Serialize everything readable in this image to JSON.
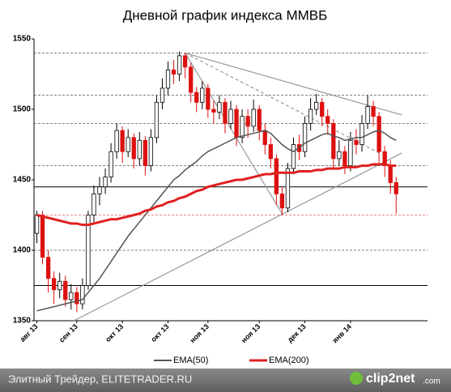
{
  "chart_data": {
    "type": "candlestick",
    "title": "Дневной график индекса ММВБ",
    "ylim": [
      1350,
      1550
    ],
    "yticks": [
      1350,
      1400,
      1450,
      1500,
      1550
    ],
    "xlim": [
      -0.5,
      68.5
    ],
    "xticks": [
      {
        "value": 0,
        "label": "авг 13"
      },
      {
        "value": 7,
        "label": "сен 13"
      },
      {
        "value": 15,
        "label": "окт 13"
      },
      {
        "value": 23,
        "label": "окт 13"
      },
      {
        "value": 30,
        "label": "ноя 13"
      },
      {
        "value": 39,
        "label": "ноя 13"
      },
      {
        "value": 47,
        "label": "дек 13"
      },
      {
        "value": 55,
        "label": "янв 14"
      }
    ],
    "grid": false,
    "up_color": "#ffffff",
    "down_color": "#dd1111",
    "open": [
      1412,
      1425,
      1395,
      1380,
      1372,
      1378,
      1365,
      1370,
      1362,
      1375,
      1425,
      1440,
      1445,
      1452,
      1470,
      1485,
      1470,
      1480,
      1465,
      1478,
      1460,
      1480,
      1505,
      1515,
      1528,
      1525,
      1538,
      1530,
      1512,
      1505,
      1515,
      1500,
      1498,
      1505,
      1490,
      1500,
      1480,
      1495,
      1488,
      1500,
      1485,
      1475,
      1465,
      1440,
      1430,
      1458,
      1475,
      1470,
      1490,
      1500,
      1505,
      1495,
      1490,
      1465,
      1470,
      1460,
      1478,
      1475,
      1490,
      1502,
      1495,
      1470,
      1460,
      1448
    ],
    "high": [
      1428,
      1428,
      1400,
      1385,
      1384,
      1382,
      1376,
      1374,
      1380,
      1428,
      1446,
      1452,
      1458,
      1476,
      1490,
      1488,
      1486,
      1483,
      1484,
      1481,
      1486,
      1510,
      1522,
      1534,
      1535,
      1541,
      1540,
      1533,
      1516,
      1520,
      1518,
      1506,
      1510,
      1508,
      1506,
      1503,
      1500,
      1500,
      1507,
      1503,
      1490,
      1480,
      1468,
      1445,
      1462,
      1480,
      1482,
      1495,
      1508,
      1511,
      1508,
      1500,
      1493,
      1478,
      1474,
      1484,
      1486,
      1496,
      1510,
      1506,
      1498,
      1474,
      1464,
      1452
    ],
    "low": [
      1405,
      1390,
      1370,
      1362,
      1366,
      1360,
      1358,
      1356,
      1358,
      1372,
      1420,
      1432,
      1440,
      1448,
      1465,
      1462,
      1466,
      1458,
      1460,
      1453,
      1456,
      1476,
      1500,
      1510,
      1518,
      1520,
      1522,
      1505,
      1498,
      1500,
      1494,
      1490,
      1493,
      1483,
      1486,
      1474,
      1476,
      1480,
      1484,
      1478,
      1468,
      1458,
      1432,
      1425,
      1427,
      1454,
      1464,
      1466,
      1485,
      1496,
      1488,
      1482,
      1458,
      1460,
      1454,
      1456,
      1468,
      1470,
      1486,
      1488,
      1462,
      1452,
      1440,
      1426
    ],
    "close": [
      1425,
      1395,
      1380,
      1372,
      1378,
      1365,
      1370,
      1362,
      1375,
      1425,
      1440,
      1445,
      1452,
      1470,
      1485,
      1470,
      1480,
      1465,
      1478,
      1460,
      1480,
      1505,
      1515,
      1528,
      1525,
      1538,
      1530,
      1512,
      1505,
      1515,
      1500,
      1498,
      1505,
      1490,
      1500,
      1480,
      1495,
      1488,
      1500,
      1485,
      1475,
      1465,
      1440,
      1430,
      1458,
      1475,
      1470,
      1490,
      1500,
      1505,
      1495,
      1490,
      1465,
      1470,
      1460,
      1478,
      1475,
      1490,
      1502,
      1495,
      1470,
      1460,
      1448,
      1440
    ],
    "series": [
      {
        "name": "EMA(50)",
        "color": "#555555",
        "values": [
          1357,
          1358,
          1359,
          1360,
          1361,
          1362,
          1363,
          1364,
          1365,
          1370,
          1375,
          1380,
          1386,
          1392,
          1398,
          1404,
          1410,
          1415,
          1420,
          1425,
          1430,
          1435,
          1440,
          1445,
          1450,
          1453,
          1457,
          1460,
          1463,
          1467,
          1470,
          1472,
          1474,
          1476,
          1478,
          1480,
          1481,
          1482,
          1483,
          1484,
          1485,
          1483,
          1479,
          1475,
          1472,
          1470,
          1473,
          1476,
          1478,
          1480,
          1482,
          1483,
          1481,
          1480,
          1478,
          1479,
          1480,
          1480,
          1482,
          1484,
          1485,
          1483,
          1480,
          1478
        ]
      },
      {
        "name": "EMA(200)",
        "color": "#e02020",
        "values": [
          1425,
          1424,
          1423,
          1422,
          1421,
          1420,
          1419,
          1419,
          1418,
          1418,
          1419,
          1420,
          1421,
          1422,
          1422,
          1423,
          1424,
          1425,
          1426,
          1428,
          1429,
          1431,
          1432,
          1434,
          1435,
          1437,
          1438,
          1440,
          1442,
          1443,
          1445,
          1446,
          1447,
          1448,
          1449,
          1450,
          1450,
          1451,
          1452,
          1453,
          1454,
          1454,
          1455,
          1455,
          1455,
          1455,
          1456,
          1456,
          1456,
          1457,
          1457,
          1458,
          1458,
          1458,
          1459,
          1459,
          1459,
          1460,
          1460,
          1461,
          1461,
          1461,
          1460,
          1460
        ]
      }
    ],
    "levels": [
      {
        "value": 1540,
        "color": "#555555",
        "style": "dashed"
      },
      {
        "value": 1510,
        "color": "#555555",
        "style": "dashed"
      },
      {
        "value": 1490,
        "color": "#555555",
        "style": "dashed"
      },
      {
        "value": 1460,
        "color": "#555555",
        "style": "dashed"
      },
      {
        "value": 1425,
        "color": "#e06060",
        "style": "dashed"
      },
      {
        "value": 1400,
        "color": "#555555",
        "style": "dashed"
      },
      {
        "value": 1445,
        "color": "#000000",
        "style": "solid"
      },
      {
        "value": 1375,
        "color": "#000000",
        "style": "solid"
      }
    ],
    "trendlines": [
      {
        "from": [
          26,
          1540
        ],
        "to": [
          64,
          1496
        ],
        "color": "#999999",
        "style": "solid"
      },
      {
        "from": [
          26,
          1540
        ],
        "to": [
          60.5,
          1468
        ],
        "color": "#999999",
        "style": "dashed"
      },
      {
        "from": [
          26,
          1540
        ],
        "to": [
          43,
          1426
        ],
        "color": "#999999",
        "style": "solid"
      },
      {
        "from": [
          6.5,
          1350
        ],
        "to": [
          64,
          1469
        ],
        "color": "#999999",
        "style": "solid"
      }
    ],
    "footer": {
      "source": "Элитный Трейдер, ELITETRADER.RU",
      "logo": "clip2net",
      "logo_suffix": ".com"
    }
  }
}
